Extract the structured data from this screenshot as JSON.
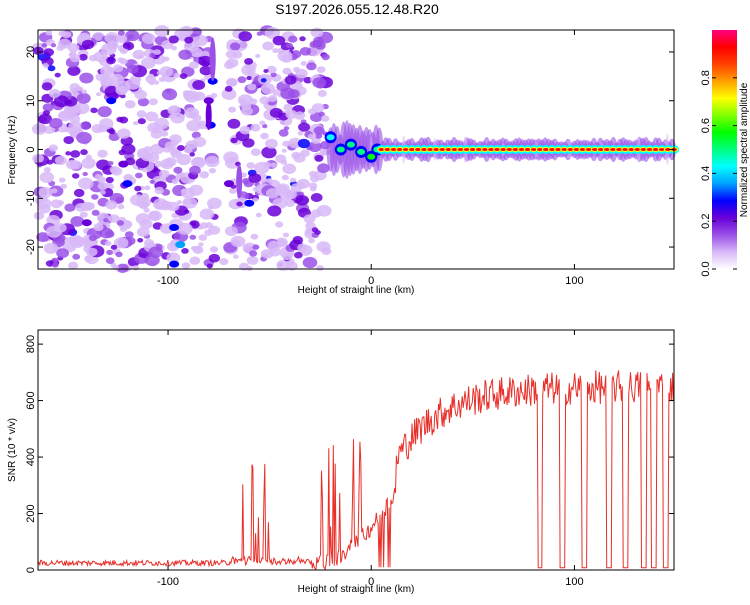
{
  "chart_data": [
    {
      "type": "heatmap",
      "title": "S197.2026.055.12.48.R20",
      "xlabel": "Height of straight line (km)",
      "ylabel": "Frequency (Hz)",
      "xlim": [
        -164,
        149
      ],
      "ylim": [
        -24.5,
        24.5
      ],
      "xticks": [
        -100,
        0,
        100
      ],
      "yticks": [
        20,
        10,
        0,
        -10,
        -20
      ],
      "colorbar": {
        "label": "Normalized spectral amplitude",
        "range": [
          0,
          1
        ],
        "ticks": [
          "0.0",
          "0.2",
          "0.4",
          "0.6",
          "0.8"
        ],
        "colors": [
          "#ffffff",
          "#d8b8f8",
          "#9a50e8",
          "#6a00d8",
          "#0000ff",
          "#00a0ff",
          "#00ffff",
          "#00ff80",
          "#00ff00",
          "#80ff00",
          "#ffff00",
          "#ffa000",
          "#ff4000",
          "#ff0000",
          "#ff0080"
        ]
      },
      "signal": {
        "noise_region_end_km": -22,
        "line_start_km": 5,
        "line_frequency_hz": 0
      }
    },
    {
      "type": "line",
      "xlabel": "Height of straight line (km)",
      "ylabel": "SNR (10 * v/v)",
      "xlim": [
        -164,
        149
      ],
      "ylim": [
        0,
        850
      ],
      "xticks": [
        -100,
        0,
        100
      ],
      "yticks": [
        0,
        200,
        400,
        600,
        800
      ],
      "color": "#e8302a",
      "noise_floor": 25,
      "spike_regions_km": [
        [
          -65,
          -50
        ],
        [
          -25,
          -15
        ],
        [
          -10,
          -5
        ]
      ],
      "plateau_level": 650,
      "dropouts_km": [
        83,
        94,
        105,
        117,
        125,
        134,
        139,
        145
      ]
    }
  ]
}
